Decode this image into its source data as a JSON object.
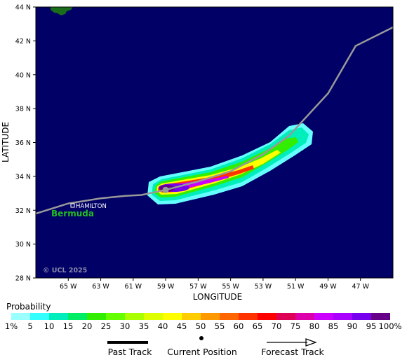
{
  "map": {
    "y_axis_title": "LATITUDE",
    "x_axis_title": "LONGITUDE",
    "lat_ticks": [
      "44 N",
      "42 N",
      "40 N",
      "38 N",
      "36 N",
      "34 N",
      "32 N",
      "30 N",
      "28 N"
    ],
    "lon_ticks": [
      "65 W",
      "63 W",
      "61 W",
      "59 W",
      "57 W",
      "55 W",
      "53 W",
      "51 W",
      "49 W",
      "47 W"
    ],
    "lat_range": [
      28,
      44
    ],
    "lon_range": [
      -67,
      -45
    ],
    "ocean_color": "#000066",
    "land_color": "#1a6e1a",
    "places": {
      "city": "HAMILTON",
      "island": "Bermuda",
      "island_color": "#22bb22"
    },
    "watermark": "© UCL 2025",
    "storm": {
      "current_position": {
        "lat": 33.2,
        "lon": -59.0
      },
      "track": [
        {
          "lat": 31.8,
          "lon": -67.0
        },
        {
          "lat": 32.4,
          "lon": -65.0
        },
        {
          "lat": 32.7,
          "lon": -63.0
        },
        {
          "lat": 32.85,
          "lon": -61.5
        },
        {
          "lat": 32.9,
          "lon": -60.5
        },
        {
          "lat": 33.2,
          "lon": -59.0
        },
        {
          "lat": 33.7,
          "lon": -57.0
        },
        {
          "lat": 34.3,
          "lon": -55.0
        },
        {
          "lat": 35.3,
          "lon": -53.0
        },
        {
          "lat": 36.4,
          "lon": -51.4
        },
        {
          "lat": 38.9,
          "lon": -49.0
        },
        {
          "lat": 41.7,
          "lon": -47.3
        },
        {
          "lat": 42.8,
          "lon": -45.0
        }
      ],
      "track_color": "#999999"
    }
  },
  "legend": {
    "title": "Probability",
    "labels": [
      "1%",
      "5",
      "10",
      "15",
      "20",
      "25",
      "30",
      "35",
      "40",
      "45",
      "50",
      "55",
      "60",
      "65",
      "70",
      "75",
      "80",
      "85",
      "90",
      "95",
      "100%"
    ],
    "colors": [
      "#99ffff",
      "#33ffff",
      "#00eebb",
      "#00ee66",
      "#33ee00",
      "#66ff00",
      "#aaff00",
      "#ddff00",
      "#ffff00",
      "#ffcc00",
      "#ff9900",
      "#ff6600",
      "#ff3300",
      "#ff0000",
      "#dd0055",
      "#dd00aa",
      "#cc00ff",
      "#aa00ff",
      "#7700ee",
      "#660088"
    ]
  },
  "key": {
    "past_track": "Past Track",
    "current_position": "Current Position",
    "forecast_track": "Forecast Track"
  }
}
